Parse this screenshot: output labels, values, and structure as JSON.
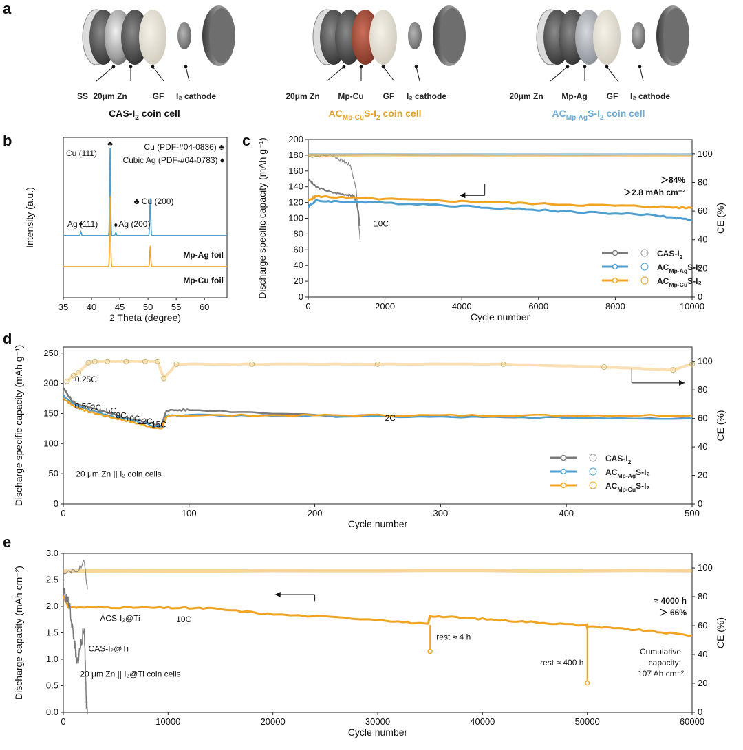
{
  "colors": {
    "gray": "#7a7a7a",
    "blue": "#4f9fd1",
    "orange": "#f0a422",
    "orange_text": "#e3a12a",
    "blue_text": "#6aaad6",
    "dark": "#111111"
  },
  "panel_a": {
    "label": "a",
    "cells": [
      {
        "title_parts": [
          "CAS-I",
          "2",
          " coin cell"
        ],
        "title_color": "#111111",
        "components": [
          "SS",
          "20μm Zn",
          "GF",
          "I₂ cathode"
        ]
      },
      {
        "title_parts": [
          "AC",
          "Mp-Cu",
          "S-I",
          "2",
          " coin cell"
        ],
        "title_color": "#e3a12a",
        "components": [
          "20μm Zn",
          "Mp-Cu",
          "GF",
          "I₂ cathode"
        ]
      },
      {
        "title_parts": [
          "AC",
          "Mp-Ag",
          "S-I",
          "2",
          " coin cell"
        ],
        "title_color": "#6aaad6",
        "components": [
          "20μm Zn",
          "Mp-Ag",
          "GF",
          "I₂ cathode"
        ]
      }
    ]
  },
  "chart_data": [
    {
      "panel": "b",
      "type": "line",
      "title": "",
      "xlabel": "2 Theta (degree)",
      "ylabel": "Intensity (a.u.)",
      "xlim": [
        35,
        64
      ],
      "xticks": [
        35,
        40,
        45,
        50,
        55,
        60
      ],
      "series": [
        {
          "name": "Mp-Ag foil",
          "color": "#4f9fd1",
          "baseline": 0.6,
          "peaks": [
            {
              "x": 38.1,
              "h": 0.04
            },
            {
              "x": 43.3,
              "h": 0.85
            },
            {
              "x": 44.3,
              "h": 0.03
            },
            {
              "x": 50.4,
              "h": 0.36
            }
          ]
        },
        {
          "name": "Mp-Cu foil",
          "color": "#f0a422",
          "baseline": 0.3,
          "peaks": [
            {
              "x": 43.3,
              "h": 0.68
            },
            {
              "x": 50.4,
              "h": 0.2
            }
          ]
        }
      ],
      "legend": [
        {
          "text": "Cu (PDF-#04-0836) ♣",
          "color": "#e3a12a"
        },
        {
          "text": "Cubic Ag (PDF-#04-0783) ♦",
          "color": "#4f9fd1"
        }
      ],
      "annotations": [
        {
          "text": "Cu (111)",
          "color": "#e3a12a"
        },
        {
          "text": "♣",
          "color": "#e3a12a"
        },
        {
          "text": "♣ Cu (200)",
          "color": "#e3a12a"
        },
        {
          "text": "Ag (111)",
          "color": "#4f9fd1"
        },
        {
          "text": "Ag (200)",
          "color": "#4f9fd1"
        },
        {
          "text": "Mp-Ag foil",
          "color": "#4f9fd1"
        },
        {
          "text": "Mp-Cu foil",
          "color": "#e3a12a"
        }
      ]
    },
    {
      "panel": "c",
      "type": "line",
      "xlabel": "Cycle number",
      "ylabel": "Discharge specific capacity (mAh g⁻¹)",
      "y2label": "CE (%)",
      "xlim": [
        0,
        10000
      ],
      "xticks": [
        0,
        2000,
        4000,
        6000,
        8000,
        10000
      ],
      "ylim": [
        0,
        200
      ],
      "yticks": [
        0,
        20,
        40,
        60,
        80,
        100,
        120,
        140,
        160,
        180,
        200
      ],
      "y2lim": [
        0,
        110
      ],
      "y2ticks": [
        0,
        20,
        40,
        60,
        80,
        100
      ],
      "series": [
        {
          "name": "CAS-I₂",
          "color": "#7a7a7a",
          "capacity": [
            [
              0,
              150
            ],
            [
              200,
              140
            ],
            [
              600,
              133
            ],
            [
              1000,
              130
            ],
            [
              1200,
              128
            ],
            [
              1300,
              110
            ],
            [
              1350,
              90
            ]
          ],
          "ce": [
            [
              0,
              98
            ],
            [
              600,
              99
            ],
            [
              900,
              95
            ],
            [
              1100,
              92
            ],
            [
              1250,
              75
            ],
            [
              1350,
              40
            ]
          ]
        },
        {
          "name": "ACMp-AgS-I₂",
          "color": "#4f9fd1",
          "capacity": [
            [
              0,
              115
            ],
            [
              200,
              122
            ],
            [
              1000,
              121
            ],
            [
              3000,
              118
            ],
            [
              5000,
              113
            ],
            [
              7000,
              108
            ],
            [
              9000,
              104
            ],
            [
              10000,
              98
            ]
          ],
          "ce": [
            [
              0,
              99.5
            ],
            [
              10000,
              99.5
            ]
          ]
        },
        {
          "name": "ACMp-CuS-I₂",
          "color": "#f0a422",
          "capacity": [
            [
              0,
              122
            ],
            [
              200,
              128
            ],
            [
              1000,
              126
            ],
            [
              3000,
              123
            ],
            [
              5000,
              120
            ],
            [
              7000,
              117
            ],
            [
              9000,
              115
            ],
            [
              10000,
              113
            ]
          ],
          "ce": [
            [
              0,
              99
            ],
            [
              10000,
              98.5
            ]
          ]
        }
      ],
      "annotations": [
        {
          "text": "10C"
        },
        {
          "text": "＞84%",
          "color": "#e3a12a"
        },
        {
          "text": "＞2.8 mAh cm⁻²",
          "color": "#e3a12a"
        }
      ],
      "legend_labels": [
        [
          "CAS-I",
          "2",
          ""
        ],
        [
          "AC",
          "Mp-Ag",
          "S-I₂"
        ],
        [
          "AC",
          "Mp-Cu",
          "S-I₂"
        ]
      ]
    },
    {
      "panel": "d",
      "type": "line",
      "xlabel": "Cycle number",
      "ylabel": "Discharge specific capacity (mAh g⁻¹)",
      "y2label": "CE (%)",
      "xlim": [
        0,
        500
      ],
      "xticks": [
        0,
        100,
        200,
        300,
        400,
        500
      ],
      "ylim": [
        0,
        260
      ],
      "yticks": [
        0,
        50,
        100,
        150,
        200,
        250
      ],
      "y2lim": [
        0,
        110
      ],
      "y2ticks": [
        0,
        20,
        40,
        60,
        80,
        100
      ],
      "series": [
        {
          "name": "CAS-I₂",
          "color": "#7a7a7a",
          "capacity": [
            [
              0,
              192
            ],
            [
              8,
              168
            ],
            [
              20,
              160
            ],
            [
              40,
              148
            ],
            [
              60,
              138
            ],
            [
              78,
              130
            ],
            [
              82,
              155
            ],
            [
              100,
              156
            ],
            [
              200,
              148
            ],
            [
              300,
              145
            ],
            [
              400,
              143
            ],
            [
              500,
              142
            ]
          ]
        },
        {
          "name": "ACMp-AgS-I₂",
          "color": "#4f9fd1",
          "capacity": [
            [
              0,
              180
            ],
            [
              8,
              165
            ],
            [
              20,
              156
            ],
            [
              40,
              145
            ],
            [
              60,
              136
            ],
            [
              78,
              127
            ],
            [
              82,
              146
            ],
            [
              100,
              147
            ],
            [
              200,
              146
            ],
            [
              300,
              144
            ],
            [
              400,
              143
            ],
            [
              500,
              142
            ]
          ]
        },
        {
          "name": "ACMp-CuS-I₂",
          "color": "#f0a422",
          "capacity": [
            [
              0,
              175
            ],
            [
              8,
              163
            ],
            [
              20,
              153
            ],
            [
              40,
              143
            ],
            [
              60,
              133
            ],
            [
              78,
              124
            ],
            [
              82,
              145
            ],
            [
              100,
              147
            ],
            [
              200,
              147
            ],
            [
              300,
              147
            ],
            [
              400,
              147
            ],
            [
              500,
              147
            ]
          ]
        }
      ],
      "ce_points": [
        [
          3,
          86
        ],
        [
          8,
          90
        ],
        [
          12,
          92
        ],
        [
          20,
          99
        ],
        [
          25,
          100
        ],
        [
          35,
          100
        ],
        [
          50,
          100
        ],
        [
          65,
          100
        ],
        [
          75,
          100
        ],
        [
          80,
          88
        ],
        [
          90,
          98
        ],
        [
          150,
          98
        ],
        [
          250,
          98
        ],
        [
          350,
          98
        ],
        [
          430,
          96
        ],
        [
          485,
          94
        ],
        [
          500,
          98
        ]
      ],
      "annotations": [
        {
          "text": "0.25C"
        },
        {
          "text": "0.5C"
        },
        {
          "text": "2C"
        },
        {
          "text": "5C"
        },
        {
          "text": "8C"
        },
        {
          "text": "10C"
        },
        {
          "text": "12C"
        },
        {
          "text": "15C"
        },
        {
          "text": "2C"
        },
        {
          "text": "20 μm Zn || I₂ coin cells"
        }
      ],
      "legend_labels": [
        [
          "CAS-I",
          "2",
          ""
        ],
        [
          "AC",
          "Mp-Ag",
          "S-I₂"
        ],
        [
          "AC",
          "Mp-Cu",
          "S-I₂"
        ]
      ]
    },
    {
      "panel": "e",
      "type": "line",
      "xlabel": "Cycle number",
      "ylabel": "Discharge capacity (mAh cm⁻²)",
      "y2label": "CE (%)",
      "xlim": [
        0,
        60000
      ],
      "xticks": [
        0,
        10000,
        20000,
        30000,
        40000,
        50000,
        60000
      ],
      "ylim": [
        0,
        3.0
      ],
      "yticks": [
        0.0,
        0.5,
        1.0,
        1.5,
        2.0,
        2.5,
        3.0
      ],
      "y2lim": [
        0,
        110
      ],
      "y2ticks": [
        0,
        20,
        40,
        60,
        80,
        100
      ],
      "series": [
        {
          "name": "ACS-I₂@Ti",
          "color": "#f0a422",
          "capacity": [
            [
              0,
              2.2
            ],
            [
              500,
              1.98
            ],
            [
              5000,
              1.98
            ],
            [
              10000,
              1.97
            ],
            [
              14000,
              1.96
            ],
            [
              20000,
              1.85
            ],
            [
              30000,
              1.75
            ],
            [
              34800,
              1.66
            ],
            [
              35000,
              1.82
            ],
            [
              40000,
              1.76
            ],
            [
              45000,
              1.7
            ],
            [
              49900,
              1.64
            ],
            [
              50100,
              1.62
            ],
            [
              55000,
              1.55
            ],
            [
              60000,
              1.45
            ]
          ],
          "dips": [
            [
              35000,
              1.15
            ],
            [
              50000,
              0.55
            ]
          ]
        },
        {
          "name": "CAS-I₂@Ti",
          "color": "#7a7a7a",
          "capacity": [
            [
              0,
              2.3
            ],
            [
              600,
              2.0
            ],
            [
              1000,
              1.4
            ],
            [
              1300,
              0.9
            ],
            [
              1700,
              1.3
            ],
            [
              2000,
              1.6
            ],
            [
              2200,
              0.2
            ],
            [
              2300,
              0.05
            ]
          ]
        }
      ],
      "ce_series": [
        {
          "color": "#f0a422",
          "points": [
            [
              0,
              98
            ],
            [
              60000,
              98
            ]
          ]
        },
        {
          "color": "#7a7a7a",
          "points": [
            [
              0,
              97
            ],
            [
              1500,
              99
            ],
            [
              2000,
              105
            ],
            [
              2300,
              85
            ]
          ]
        }
      ],
      "annotations": [
        {
          "text": "ACS-I₂@Ti",
          "color": "#f0a422"
        },
        {
          "text": "10C"
        },
        {
          "text": "CAS-I₂@Ti",
          "color": "#7a7a7a"
        },
        {
          "text": "20 μm Zn ||  I₂@Ti coin cells"
        },
        {
          "text": "rest ≈ 4 h",
          "color": "#e3a12a"
        },
        {
          "text": "rest ≈ 400 h",
          "color": "#e3a12a"
        },
        {
          "text": "≈ 4000 h",
          "color": "#e3a12a"
        },
        {
          "text": "＞ 66%",
          "color": "#e3a12a"
        },
        {
          "text": "Cumulative",
          "color": "#e3a12a"
        },
        {
          "text": "capacity:",
          "color": "#e3a12a"
        },
        {
          "text": "107 Ah cm⁻²",
          "color": "#e3a12a"
        }
      ]
    }
  ]
}
